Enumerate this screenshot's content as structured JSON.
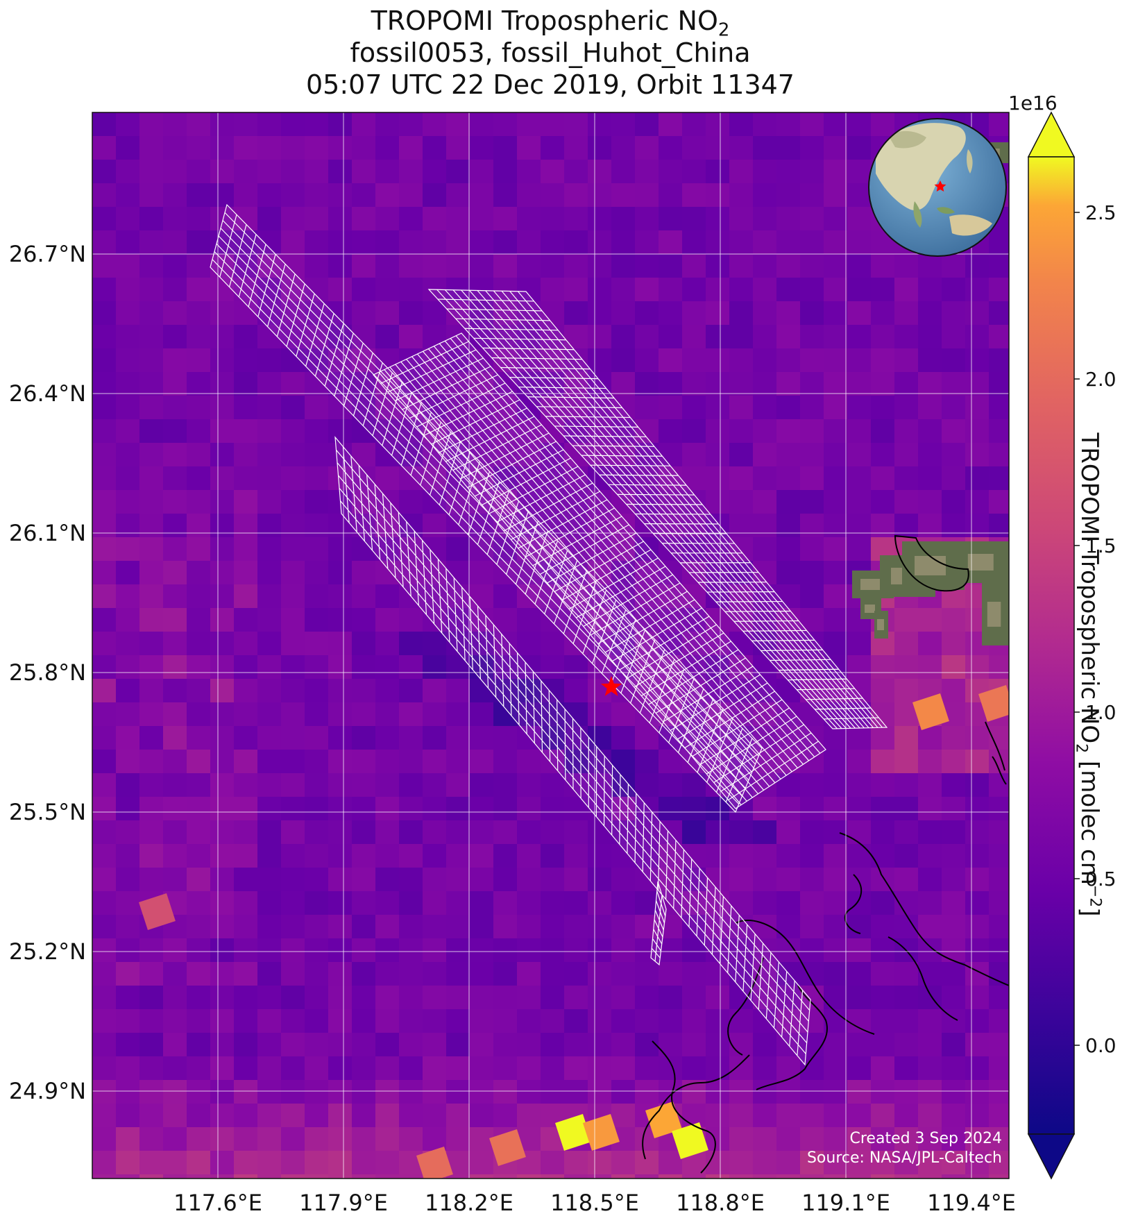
{
  "title": {
    "line1_prefix": "TROPOMI Tropospheric NO",
    "line1_sub": "2",
    "line2": "fossil0053, fossil_Huhot_China",
    "line3": "05:07 UTC 22 Dec 2019, Orbit 11347"
  },
  "map": {
    "lon_ticks": [
      "117.6°E",
      "117.9°E",
      "118.2°E",
      "118.5°E",
      "118.8°E",
      "119.1°E",
      "119.4°E"
    ],
    "lat_ticks": [
      "26.7°N",
      "26.4°N",
      "26.1°N",
      "25.8°N",
      "25.5°N",
      "25.2°N",
      "24.9°N"
    ],
    "credit_line1": "Created 3 Sep 2024",
    "credit_line2": "Source: NASA/JPL-Caltech",
    "target_icon": "red-star-icon",
    "inset_icon": "globe-inset-icon",
    "colors": {
      "background": "#6a08a3",
      "grid": "#ffffff",
      "target": "#ff0000",
      "coast": "#000000"
    }
  },
  "colorbar": {
    "exponent": "1e16",
    "ticks": [
      "2.5",
      "2.0",
      "1.5",
      "1.0",
      "0.5",
      "0.0"
    ],
    "label_prefix": "TROPOMI Tropospheric NO",
    "label_sub": "2",
    "label_mid": " [molec cm",
    "label_sup": "−2",
    "label_suffix": "]",
    "colormap": "plasma",
    "range": [
      -0.4,
      2.8
    ]
  }
}
